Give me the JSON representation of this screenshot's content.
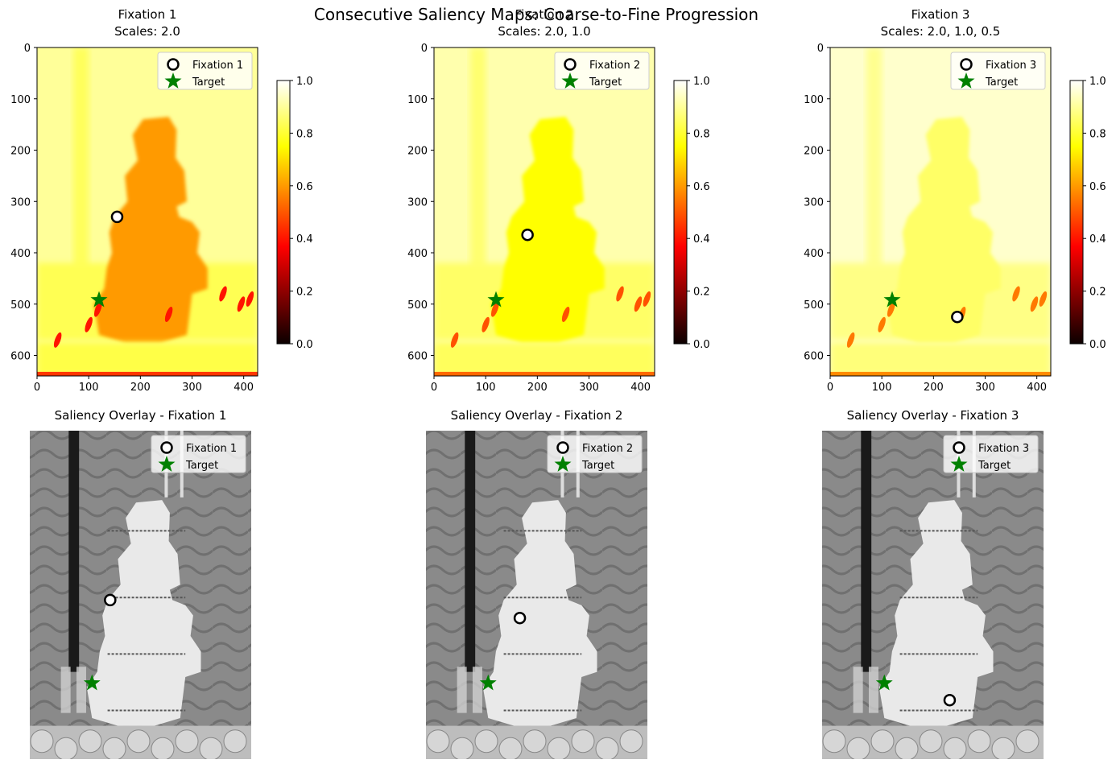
{
  "figure": {
    "suptitle": "Consecutive Saliency Maps: Coarse-to-Fine Progression"
  },
  "colors": {
    "fixation_marker_face": "#ffffff",
    "fixation_marker_edge": "#000000",
    "target_marker": "#008000",
    "colormap": "hot"
  },
  "icons": {
    "fixation": "hollow-circle-icon",
    "target": "star-icon"
  },
  "chart_data": [
    {
      "type": "heatmap",
      "title": "Fixation 1\nScales: 2.0",
      "title_lines": [
        "Fixation 1",
        "Scales: 2.0"
      ],
      "image_shape": [
        640,
        427
      ],
      "colormap": "hot",
      "xlim": [
        0,
        427
      ],
      "ylim": [
        640,
        0
      ],
      "xticks": [
        "0",
        "100",
        "200",
        "300",
        "400"
      ],
      "yticks": [
        "0",
        "100",
        "200",
        "300",
        "400",
        "500",
        "600"
      ],
      "colorbar": {
        "range": [
          0.0,
          1.0
        ],
        "ticks": [
          "0.0",
          "0.2",
          "0.4",
          "0.6",
          "0.8",
          "1.0"
        ]
      },
      "cake_saliency_level": 0.6,
      "background_saliency_level": 0.9,
      "fixation": {
        "label": "Fixation 1",
        "x": 155,
        "y": 330
      },
      "target": {
        "label": "Target",
        "x": 120,
        "y": 492
      },
      "legend": [
        "Fixation 1",
        "Target"
      ],
      "legend_loc": "upper right"
    },
    {
      "type": "heatmap",
      "title": "Fixation 2\nScales: 2.0, 1.0",
      "title_lines": [
        "Fixation 2",
        "Scales: 2.0, 1.0"
      ],
      "image_shape": [
        640,
        427
      ],
      "colormap": "hot",
      "xlim": [
        0,
        427
      ],
      "ylim": [
        640,
        0
      ],
      "xticks": [
        "0",
        "100",
        "200",
        "300",
        "400"
      ],
      "yticks": [
        "0",
        "100",
        "200",
        "300",
        "400",
        "500",
        "600"
      ],
      "colorbar": {
        "range": [
          0.0,
          1.0
        ],
        "ticks": [
          "0.0",
          "0.2",
          "0.4",
          "0.6",
          "0.8",
          "1.0"
        ]
      },
      "cake_saliency_level": 0.75,
      "background_saliency_level": 0.92,
      "fixation": {
        "label": "Fixation 2",
        "x": 181,
        "y": 365
      },
      "target": {
        "label": "Target",
        "x": 120,
        "y": 492
      },
      "legend": [
        "Fixation 2",
        "Target"
      ],
      "legend_loc": "upper right"
    },
    {
      "type": "heatmap",
      "title": "Fixation 3\nScales: 2.0, 1.0, 0.5",
      "title_lines": [
        "Fixation 3",
        "Scales: 2.0, 1.0, 0.5"
      ],
      "image_shape": [
        640,
        427
      ],
      "colormap": "hot",
      "xlim": [
        0,
        427
      ],
      "ylim": [
        640,
        0
      ],
      "xticks": [
        "0",
        "100",
        "200",
        "300",
        "400"
      ],
      "yticks": [
        "0",
        "100",
        "200",
        "300",
        "400",
        "500",
        "600"
      ],
      "colorbar": {
        "range": [
          0.0,
          1.0
        ],
        "ticks": [
          "0.0",
          "0.2",
          "0.4",
          "0.6",
          "0.8",
          "1.0"
        ]
      },
      "cake_saliency_level": 0.85,
      "background_saliency_level": 0.95,
      "fixation": {
        "label": "Fixation 3",
        "x": 246,
        "y": 525
      },
      "target": {
        "label": "Target",
        "x": 120,
        "y": 492
      },
      "legend": [
        "Fixation 3",
        "Target"
      ],
      "legend_loc": "upper right"
    },
    {
      "type": "scatter",
      "title": "Saliency Overlay - Fixation 1",
      "image_shape": [
        640,
        427
      ],
      "axes_visible": false,
      "fixation": {
        "label": "Fixation 1",
        "x": 155,
        "y": 330
      },
      "target": {
        "label": "Target",
        "x": 120,
        "y": 492
      },
      "legend": [
        "Fixation 1",
        "Target"
      ],
      "legend_loc": "upper right"
    },
    {
      "type": "scatter",
      "title": "Saliency Overlay - Fixation 2",
      "image_shape": [
        640,
        427
      ],
      "axes_visible": false,
      "fixation": {
        "label": "Fixation 2",
        "x": 181,
        "y": 365
      },
      "target": {
        "label": "Target",
        "x": 120,
        "y": 492
      },
      "legend": [
        "Fixation 2",
        "Target"
      ],
      "legend_loc": "upper right"
    },
    {
      "type": "scatter",
      "title": "Saliency Overlay - Fixation 3",
      "image_shape": [
        640,
        427
      ],
      "axes_visible": false,
      "fixation": {
        "label": "Fixation 3",
        "x": 246,
        "y": 525
      },
      "target": {
        "label": "Target",
        "x": 120,
        "y": 492
      },
      "legend": [
        "Fixation 3",
        "Target"
      ],
      "legend_loc": "upper right"
    }
  ]
}
